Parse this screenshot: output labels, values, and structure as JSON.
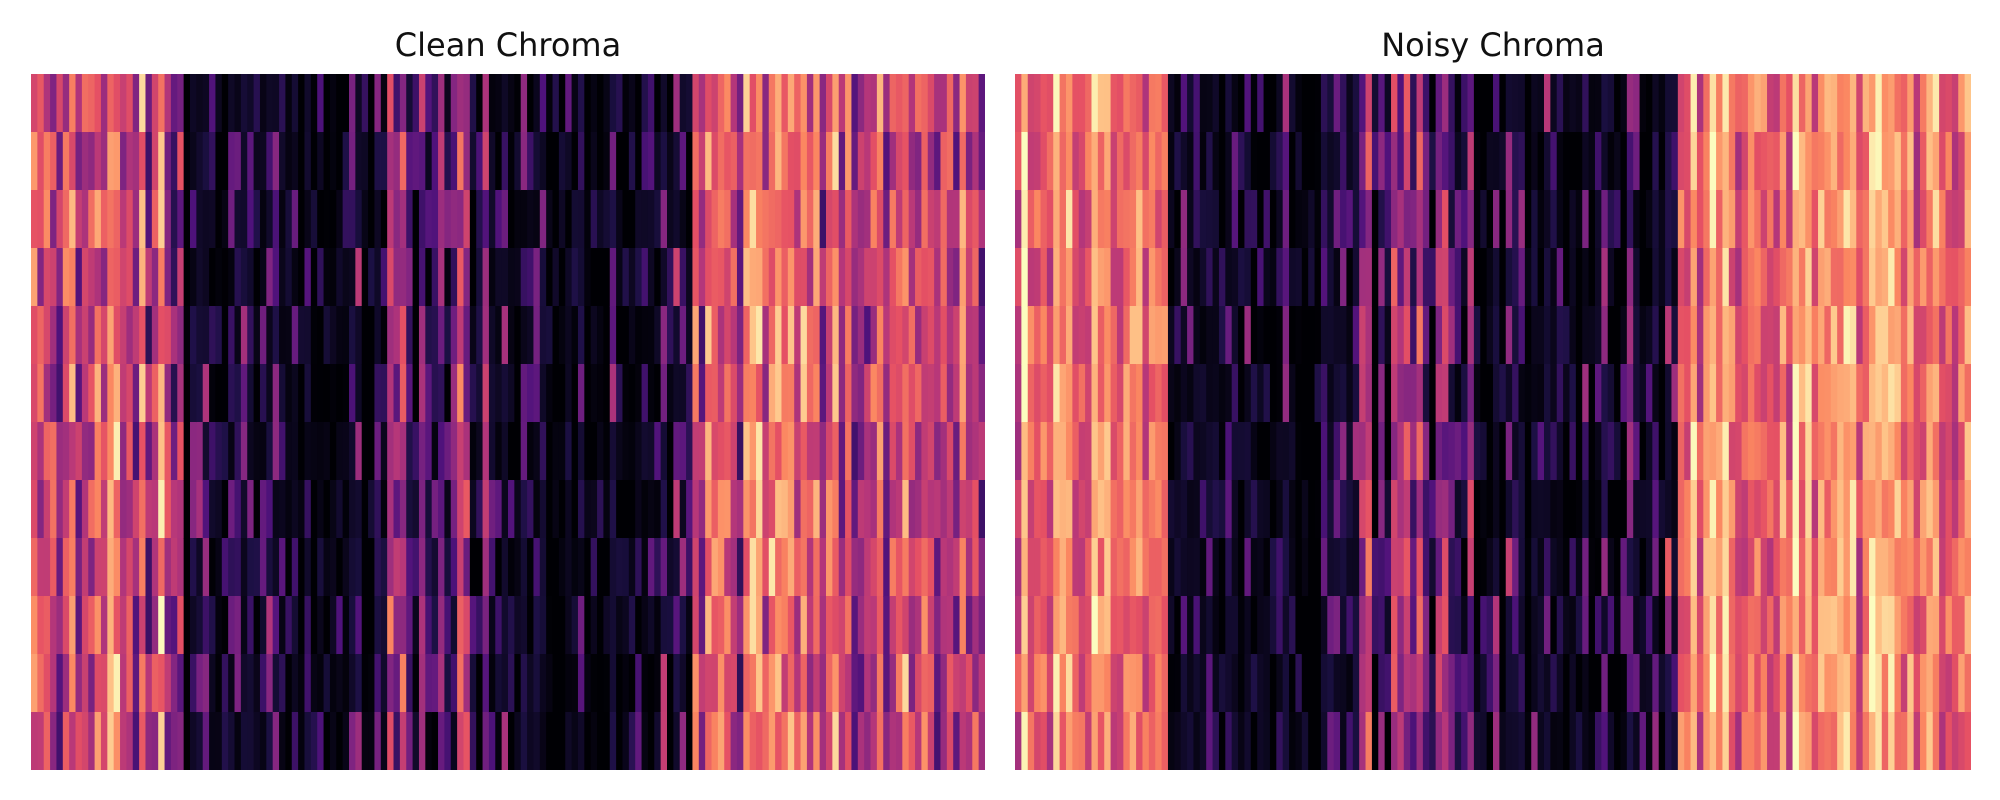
{
  "chart_data": [
    {
      "type": "heatmap",
      "title": "Clean Chroma",
      "xlabel": "",
      "ylabel": "",
      "axes": "off",
      "colormap": "magma",
      "rows": 12,
      "frames": 150,
      "clim": [
        0,
        1
      ],
      "segments": [
        {
          "start": 0,
          "end": 24,
          "level": 0.58,
          "spread": 0.32
        },
        {
          "start": 24,
          "end": 54,
          "level": 0.16,
          "spread": 0.26
        },
        {
          "start": 54,
          "end": 72,
          "level": 0.34,
          "spread": 0.34
        },
        {
          "start": 72,
          "end": 90,
          "level": 0.2,
          "spread": 0.3
        },
        {
          "start": 90,
          "end": 104,
          "level": 0.24,
          "spread": 0.32
        },
        {
          "start": 104,
          "end": 150,
          "level": 0.58,
          "spread": 0.3
        }
      ]
    },
    {
      "type": "heatmap",
      "title": "Noisy Chroma",
      "xlabel": "",
      "ylabel": "",
      "axes": "off",
      "colormap": "magma",
      "rows": 12,
      "frames": 150,
      "clim": [
        0,
        1
      ],
      "segments": [
        {
          "start": 0,
          "end": 24,
          "level": 0.74,
          "spread": 0.22
        },
        {
          "start": 24,
          "end": 54,
          "level": 0.16,
          "spread": 0.26
        },
        {
          "start": 54,
          "end": 72,
          "level": 0.3,
          "spread": 0.32
        },
        {
          "start": 72,
          "end": 90,
          "level": 0.18,
          "spread": 0.28
        },
        {
          "start": 90,
          "end": 104,
          "level": 0.26,
          "spread": 0.34
        },
        {
          "start": 104,
          "end": 150,
          "level": 0.72,
          "spread": 0.22
        }
      ]
    }
  ],
  "colors": {
    "magma": [
      "#000004",
      "#1c1044",
      "#4f127b",
      "#812581",
      "#b5367a",
      "#e55064",
      "#fb8761",
      "#fec287",
      "#fcfdbf"
    ]
  }
}
